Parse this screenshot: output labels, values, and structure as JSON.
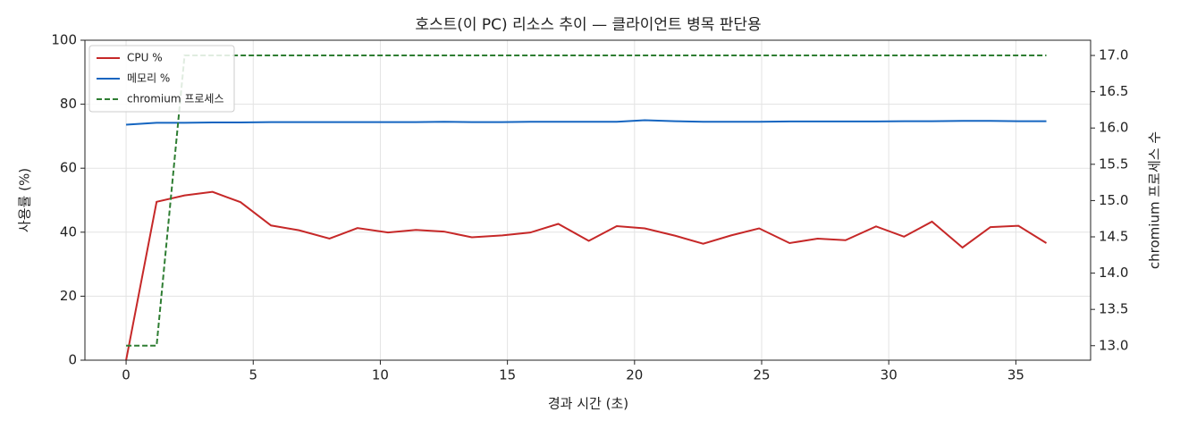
{
  "chart_data": {
    "type": "line",
    "title": "호스트(이 PC) 리소스 추이 — 클라이언트 병목 판단용",
    "x_label": "경과 시간 (초)",
    "y_label": "사용률 (%)",
    "y2_label": "chromium 프로세스 수",
    "x": [
      0,
      1.2,
      2.3,
      3.4,
      4.5,
      5.7,
      6.8,
      8.0,
      9.1,
      10.3,
      11.4,
      12.5,
      13.6,
      14.8,
      15.9,
      17.0,
      18.2,
      19.3,
      20.4,
      21.6,
      22.7,
      23.8,
      24.9,
      26.1,
      27.2,
      28.3,
      29.5,
      30.6,
      31.7,
      32.9,
      34.0,
      35.1,
      36.2
    ],
    "series": [
      {
        "name": "CPU %",
        "color": "#c62828",
        "values": [
          0,
          49.5,
          51.5,
          52.6,
          49.4,
          42.1,
          40.6,
          38.0,
          41.3,
          39.9,
          40.7,
          40.2,
          38.4,
          39.0,
          39.9,
          42.6,
          37.3,
          41.9,
          41.2,
          38.9,
          36.4,
          39.0,
          41.2,
          36.6,
          38.0,
          37.5,
          41.8,
          38.6,
          43.3,
          35.2,
          41.6,
          42.0,
          36.6
        ]
      },
      {
        "name": "메모리 %",
        "color": "#1565c0",
        "values": [
          73.6,
          74.2,
          74.2,
          74.3,
          74.3,
          74.4,
          74.4,
          74.4,
          74.4,
          74.4,
          74.4,
          74.5,
          74.4,
          74.4,
          74.5,
          74.5,
          74.5,
          74.5,
          75.0,
          74.7,
          74.5,
          74.5,
          74.5,
          74.6,
          74.6,
          74.6,
          74.6,
          74.7,
          74.7,
          74.8,
          74.8,
          74.7,
          74.7
        ]
      },
      {
        "name": "chromium 프로세스",
        "color": "#2e7d32",
        "dashed": true,
        "axis": "y2",
        "values": [
          13,
          13,
          17,
          17,
          17,
          17,
          17,
          17,
          17,
          17,
          17,
          17,
          17,
          17,
          17,
          17,
          17,
          17,
          17,
          17,
          17,
          17,
          17,
          17,
          17,
          17,
          17,
          17,
          17,
          17,
          17,
          17,
          17
        ]
      }
    ],
    "xlim": [
      -1.62,
      37.94
    ],
    "xticks": [
      0,
      5,
      10,
      15,
      20,
      25,
      30,
      35
    ],
    "ylim": [
      0,
      100
    ],
    "yticks": [
      0,
      20,
      40,
      60,
      80,
      100
    ],
    "y2lim": [
      12.8,
      17.21
    ],
    "y2ticks": [
      {
        "value": 13,
        "label": "13.0"
      },
      13.5,
      {
        "value": 14,
        "label": "14.0"
      },
      14.5,
      {
        "value": 15,
        "label": "15.0"
      },
      15.5,
      {
        "value": 16,
        "label": "16.0"
      },
      16.5,
      {
        "value": 17,
        "label": "17.0"
      }
    ],
    "grid": true,
    "legend": "upper-left"
  }
}
